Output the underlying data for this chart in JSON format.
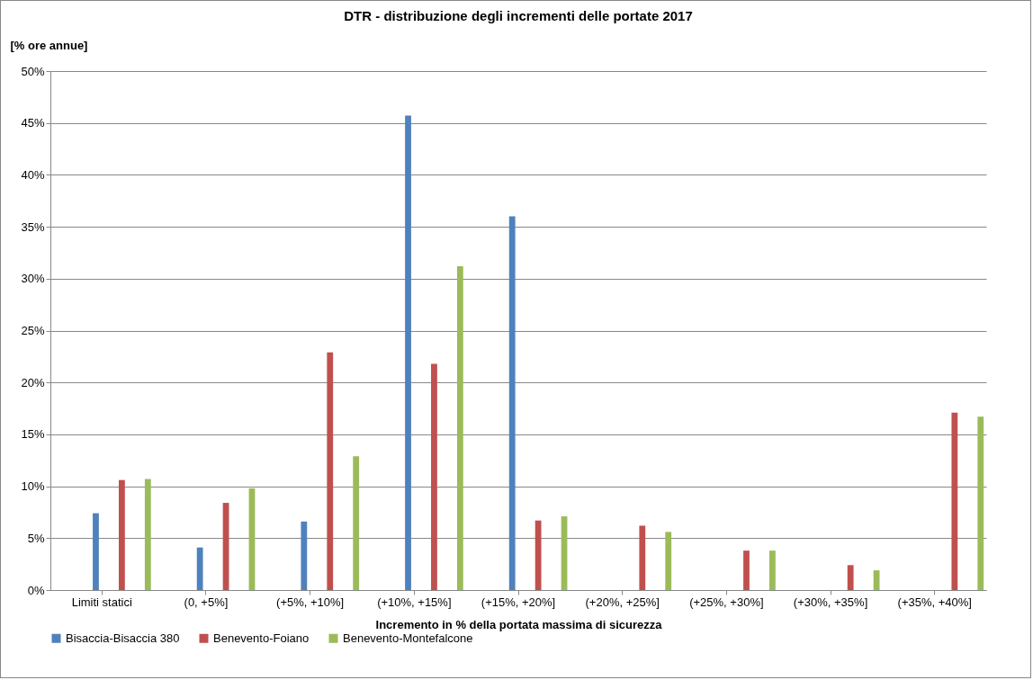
{
  "chart_data": {
    "type": "bar",
    "title": "DTR - distribuzione degli incrementi delle portate 2017",
    "xlabel": "Incremento in % della portata massima di sicurezza",
    "ylabel": "[% ore annue]",
    "categories": [
      "Limiti statici",
      "(0, +5%]",
      "(+5%, +10%]",
      "(+10%, +15%]",
      "(+15%, +20%]",
      "(+20%, +25%]",
      "(+25%, +30%]",
      "(+30%, +35%]",
      "(+35%, +40%]"
    ],
    "series": [
      {
        "name": "Bisaccia-Bisaccia 380",
        "color": "#4f81bd",
        "values": [
          7.4,
          4.1,
          6.6,
          45.7,
          36.0,
          0,
          0,
          0,
          0
        ]
      },
      {
        "name": "Benevento-Foiano",
        "color": "#c0504d",
        "values": [
          10.6,
          8.4,
          22.9,
          21.8,
          6.7,
          6.2,
          3.8,
          2.4,
          17.1
        ]
      },
      {
        "name": "Benevento-Montefalcone",
        "color": "#9bbb59",
        "values": [
          10.7,
          9.8,
          12.9,
          31.2,
          7.1,
          5.6,
          3.8,
          1.9,
          16.7
        ]
      }
    ],
    "ylim": [
      0,
      50
    ],
    "yticks": [
      {
        "value": 0,
        "label": "0%"
      },
      {
        "value": 5,
        "label": "5%"
      },
      {
        "value": 10,
        "label": "10%"
      },
      {
        "value": 15,
        "label": "15%"
      },
      {
        "value": 20,
        "label": "20%"
      },
      {
        "value": 25,
        "label": "25%"
      },
      {
        "value": 30,
        "label": "30%"
      },
      {
        "value": 35,
        "label": "35%"
      },
      {
        "value": 40,
        "label": "40%"
      },
      {
        "value": 45,
        "label": "45%"
      },
      {
        "value": 50,
        "label": "50%"
      }
    ],
    "grid": "y",
    "legend": "bottom"
  }
}
